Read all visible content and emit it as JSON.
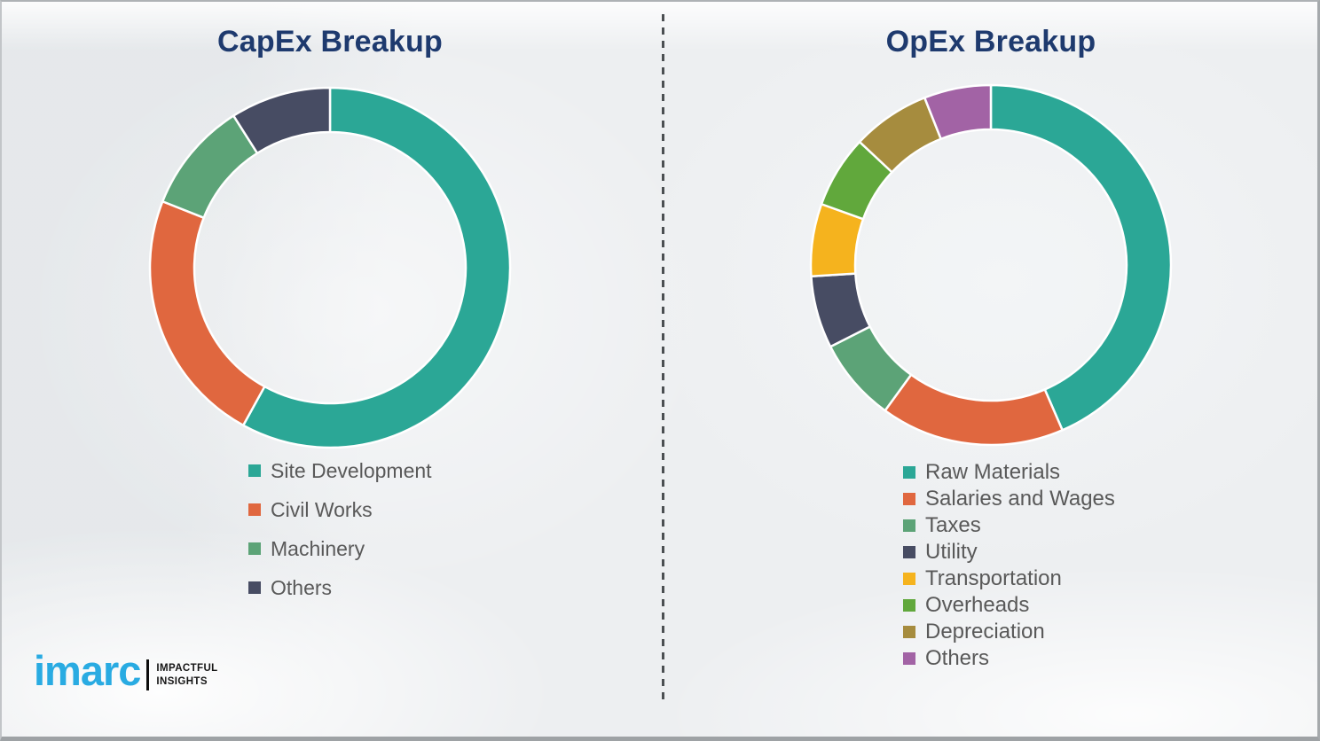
{
  "chart_data": [
    {
      "type": "pie",
      "variant": "donut",
      "title": "CapEx Breakup",
      "categories": [
        "Site Development",
        "Civil Works",
        "Machinery",
        "Others"
      ],
      "values": [
        58,
        23,
        10,
        9
      ],
      "unit": "percent-share-estimated",
      "colors": [
        "#2BA796",
        "#E0673F",
        "#5CA377",
        "#474C63"
      ],
      "start_angle_deg": 0,
      "direction": "clockwise",
      "legend_position": "below-left",
      "data_labels_shown": false
    },
    {
      "type": "pie",
      "variant": "donut",
      "title": "OpEx Breakup",
      "categories": [
        "Raw Materials",
        "Salaries and Wages",
        "Taxes",
        "Utility",
        "Transportation",
        "Overheads",
        "Depreciation",
        "Others"
      ],
      "values": [
        43.5,
        16.5,
        7.5,
        6.5,
        6.5,
        6.5,
        7,
        6
      ],
      "unit": "percent-share-estimated",
      "colors": [
        "#2BA796",
        "#E0673F",
        "#5CA377",
        "#474C63",
        "#F5B31E",
        "#61A83C",
        "#A68C3E",
        "#A263A5"
      ],
      "start_angle_deg": 0,
      "direction": "clockwise",
      "legend_position": "below-left",
      "data_labels_shown": false
    }
  ],
  "divider": {
    "style": "vertical-dashed"
  },
  "logo": {
    "brand": "imarc",
    "tagline_line1": "IMPACTFUL",
    "tagline_line2": "INSIGHTS",
    "brand_color": "#29ABE2"
  },
  "theme": {
    "background": "#EDEFF1",
    "title_color": "#1E3A6E",
    "legend_text_color": "#595959",
    "divider_color": "#4B4F52",
    "segment_gap_color": "#FFFFFF"
  }
}
